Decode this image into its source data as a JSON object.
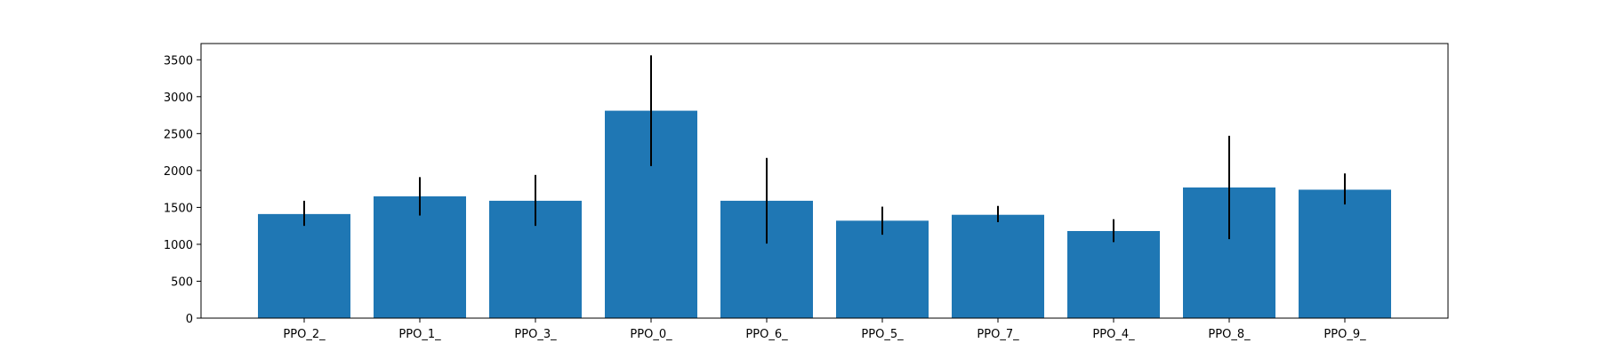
{
  "chart_data": {
    "type": "bar",
    "title": "",
    "xlabel": "",
    "ylabel": "",
    "categories": [
      "PPO_2_",
      "PPO_1_",
      "PPO_3_",
      "PPO_0_",
      "PPO_6_",
      "PPO_5_",
      "PPO_7_",
      "PPO_4_",
      "PPO_8_",
      "PPO_9_"
    ],
    "values": [
      1410,
      1650,
      1590,
      2810,
      1590,
      1320,
      1400,
      1180,
      1770,
      1740
    ],
    "error_bars": [
      [
        1250,
        1590
      ],
      [
        1390,
        1910
      ],
      [
        1250,
        1940
      ],
      [
        2060,
        3560
      ],
      [
        1010,
        2170
      ],
      [
        1130,
        1510
      ],
      [
        1300,
        1520
      ],
      [
        1030,
        1340
      ],
      [
        1070,
        2470
      ],
      [
        1540,
        1960
      ]
    ],
    "ylim": [
      0,
      3720
    ],
    "yticks": [
      0,
      500,
      1000,
      1500,
      2000,
      2500,
      3000,
      3500
    ],
    "bar_color": "#1f77b4",
    "error_color": "#000000",
    "grid": false,
    "legend": "none"
  }
}
